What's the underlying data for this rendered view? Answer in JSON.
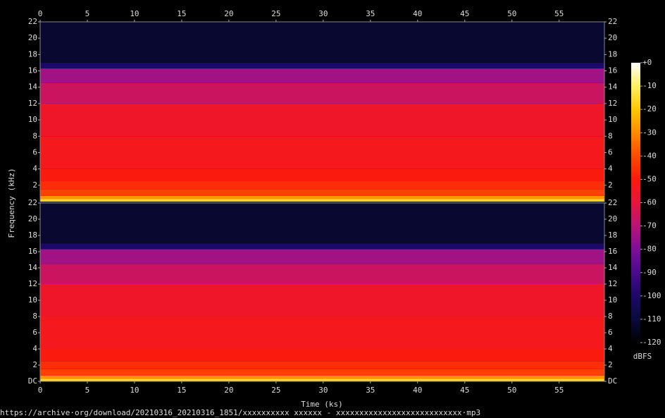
{
  "chart_data": {
    "type": "spectrogram",
    "xlabel": "Time (ks)",
    "ylabel": "Frequency (kHz)",
    "colorbar_label": "dBFS",
    "footer": "https://archive·org/download/20210316_20210316_1851/xxxxxxxxxx xxxxxx - xxxxxxxxxxxxxxxxxxxxxxxxxxx·mp3",
    "xlim": [
      0,
      59.8
    ],
    "xticks": [
      0,
      5,
      10,
      15,
      20,
      25,
      30,
      35,
      40,
      45,
      50,
      55
    ],
    "ylim": [
      0,
      22
    ],
    "channels": [
      {
        "yticks": [
          2,
          4,
          6,
          8,
          10,
          12,
          14,
          16,
          18,
          20,
          22
        ]
      },
      {
        "yticks": [
          {
            "value": 0,
            "label": "DC"
          },
          2,
          4,
          6,
          8,
          10,
          12,
          14,
          16,
          18,
          20,
          22
        ]
      }
    ],
    "clim": [
      -120,
      0
    ],
    "cticks": [
      {
        "value": 0,
        "label": "+0"
      },
      -10,
      -20,
      -30,
      -40,
      -50,
      -60,
      -70,
      -80,
      -90,
      -100,
      -110,
      -120
    ],
    "colorscale": [
      "#000000",
      "#0a0a3c",
      "#1c0868",
      "#4a0a8e",
      "#7e0e98",
      "#b81478",
      "#e8143c",
      "#fb1a0e",
      "#fe4a00",
      "#ff8a00",
      "#ffc800",
      "#fff060",
      "#ffffff"
    ],
    "levels": [
      {
        "freq": [
          0,
          0.3
        ],
        "dbfs": -15
      },
      {
        "freq": [
          0.3,
          0.7
        ],
        "dbfs": -28
      },
      {
        "freq": [
          0.7,
          1.5
        ],
        "dbfs": -42
      },
      {
        "freq": [
          1.5,
          2.5
        ],
        "dbfs": -46
      },
      {
        "freq": [
          2.5,
          4
        ],
        "dbfs": -50
      },
      {
        "freq": [
          4,
          8
        ],
        "dbfs": -53
      },
      {
        "freq": [
          8,
          12
        ],
        "dbfs": -56
      },
      {
        "freq": [
          12,
          14.5
        ],
        "dbfs": -66
      },
      {
        "freq": [
          14.5,
          16.3
        ],
        "dbfs": -74
      },
      {
        "freq": [
          16.3,
          17
        ],
        "dbfs": -100
      },
      {
        "freq": [
          17,
          22
        ],
        "dbfs": -112
      }
    ]
  }
}
